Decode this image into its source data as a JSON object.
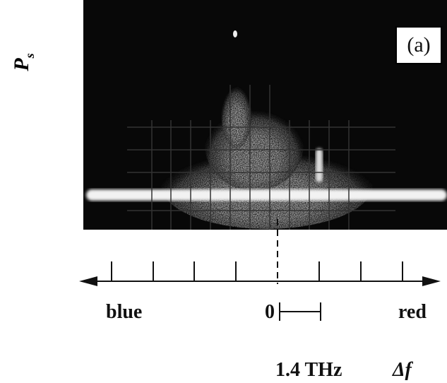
{
  "panel_label": "(a)",
  "y_label": {
    "symbol": "P",
    "subscript": "s"
  },
  "x_axis": {
    "left_label": "blue",
    "zero_label": "0",
    "right_label": "red",
    "scale_bar_label": "1.4 THz",
    "axis_label": "Δf"
  }
}
